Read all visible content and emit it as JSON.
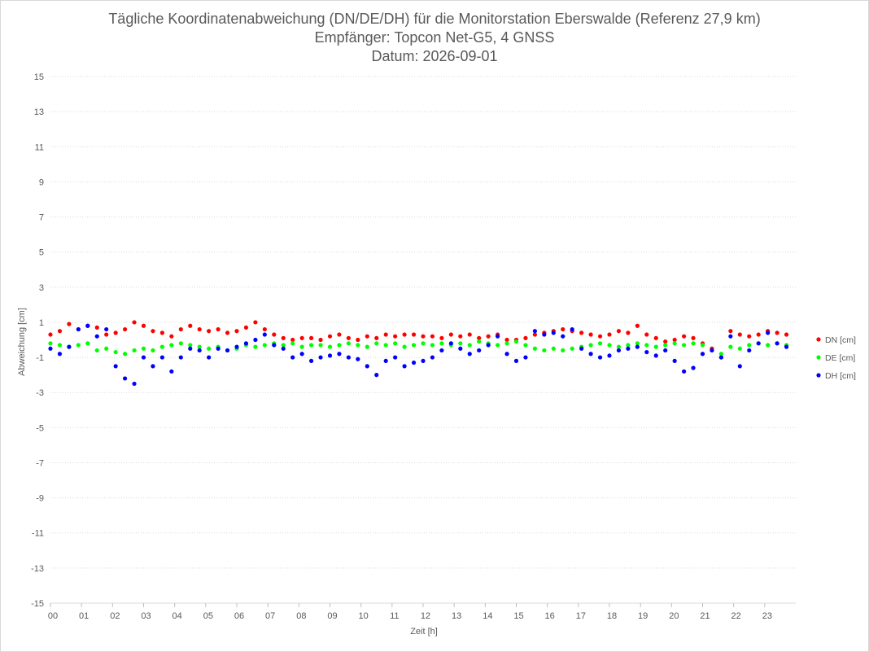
{
  "header": {
    "title": "Tägliche Koordinatenabweichung (DN/DE/DH) für die Monitorstation Eberswalde (Referenz 27,9 km)",
    "subtitle1": "Empfänger: Topcon Net-G5, 4 GNSS",
    "subtitle2": "Datum: 2026-09-01"
  },
  "chart_data": {
    "type": "scatter",
    "title": "Tägliche Koordinatenabweichung (DN/DE/DH) für die Monitorstation Eberswalde (Referenz 27,9 km)",
    "xlabel": "Zeit [h]",
    "ylabel": "Abweichung [cm]",
    "xlim": [
      0,
      24
    ],
    "ylim": [
      -15,
      15
    ],
    "yticks": [
      15,
      13,
      11,
      9,
      7,
      5,
      3,
      1,
      -1,
      -3,
      -5,
      -7,
      -9,
      -11,
      -13,
      -15
    ],
    "xtick_labels": [
      "00",
      "01",
      "02",
      "03",
      "04",
      "05",
      "06",
      "07",
      "08",
      "09",
      "10",
      "11",
      "12",
      "13",
      "14",
      "15",
      "16",
      "17",
      "18",
      "19",
      "20",
      "21",
      "22",
      "23"
    ],
    "grid": "horizontal-dotted",
    "legend_position": "right",
    "series": [
      {
        "name": "DN [cm]",
        "color": "#ff0000",
        "values": [
          [
            0.0,
            0.3
          ],
          [
            0.3,
            0.5
          ],
          [
            0.6,
            0.9
          ],
          [
            0.9,
            0.6
          ],
          [
            1.2,
            0.8
          ],
          [
            1.5,
            0.7
          ],
          [
            1.8,
            0.3
          ],
          [
            2.1,
            0.4
          ],
          [
            2.4,
            0.6
          ],
          [
            2.7,
            1.0
          ],
          [
            3.0,
            0.8
          ],
          [
            3.3,
            0.5
          ],
          [
            3.6,
            0.4
          ],
          [
            3.9,
            0.2
          ],
          [
            4.2,
            0.6
          ],
          [
            4.5,
            0.8
          ],
          [
            4.8,
            0.6
          ],
          [
            5.1,
            0.5
          ],
          [
            5.4,
            0.6
          ],
          [
            5.7,
            0.4
          ],
          [
            6.0,
            0.5
          ],
          [
            6.3,
            0.7
          ],
          [
            6.6,
            1.0
          ],
          [
            6.9,
            0.6
          ],
          [
            7.2,
            0.3
          ],
          [
            7.5,
            0.1
          ],
          [
            7.8,
            0.0
          ],
          [
            8.1,
            0.1
          ],
          [
            8.4,
            0.1
          ],
          [
            8.7,
            0.0
          ],
          [
            9.0,
            0.2
          ],
          [
            9.3,
            0.3
          ],
          [
            9.6,
            0.1
          ],
          [
            9.9,
            0.0
          ],
          [
            10.2,
            0.2
          ],
          [
            10.5,
            0.1
          ],
          [
            10.8,
            0.3
          ],
          [
            11.1,
            0.2
          ],
          [
            11.4,
            0.3
          ],
          [
            11.7,
            0.3
          ],
          [
            12.0,
            0.2
          ],
          [
            12.3,
            0.2
          ],
          [
            12.6,
            0.1
          ],
          [
            12.9,
            0.3
          ],
          [
            13.2,
            0.2
          ],
          [
            13.5,
            0.3
          ],
          [
            13.8,
            0.1
          ],
          [
            14.1,
            0.2
          ],
          [
            14.4,
            0.3
          ],
          [
            14.7,
            0.0
          ],
          [
            15.0,
            0.0
          ],
          [
            15.3,
            0.1
          ],
          [
            15.6,
            0.3
          ],
          [
            15.9,
            0.4
          ],
          [
            16.2,
            0.5
          ],
          [
            16.5,
            0.6
          ],
          [
            16.8,
            0.5
          ],
          [
            17.1,
            0.4
          ],
          [
            17.4,
            0.3
          ],
          [
            17.7,
            0.2
          ],
          [
            18.0,
            0.3
          ],
          [
            18.3,
            0.5
          ],
          [
            18.6,
            0.4
          ],
          [
            18.9,
            0.8
          ],
          [
            19.2,
            0.3
          ],
          [
            19.5,
            0.1
          ],
          [
            19.8,
            -0.1
          ],
          [
            20.1,
            0.0
          ],
          [
            20.4,
            0.2
          ],
          [
            20.7,
            0.1
          ],
          [
            21.0,
            -0.2
          ],
          [
            21.3,
            -0.5
          ],
          [
            21.6,
            -1.0
          ],
          [
            21.9,
            0.5
          ],
          [
            22.2,
            0.3
          ],
          [
            22.5,
            0.2
          ],
          [
            22.8,
            0.3
          ],
          [
            23.1,
            0.5
          ],
          [
            23.4,
            0.4
          ],
          [
            23.7,
            0.3
          ]
        ]
      },
      {
        "name": "DE [cm]",
        "color": "#00ff00",
        "values": [
          [
            0.0,
            -0.2
          ],
          [
            0.3,
            -0.3
          ],
          [
            0.6,
            -0.4
          ],
          [
            0.9,
            -0.3
          ],
          [
            1.2,
            -0.2
          ],
          [
            1.5,
            -0.6
          ],
          [
            1.8,
            -0.5
          ],
          [
            2.1,
            -0.7
          ],
          [
            2.4,
            -0.8
          ],
          [
            2.7,
            -0.6
          ],
          [
            3.0,
            -0.5
          ],
          [
            3.3,
            -0.6
          ],
          [
            3.6,
            -0.4
          ],
          [
            3.9,
            -0.3
          ],
          [
            4.2,
            -0.2
          ],
          [
            4.5,
            -0.3
          ],
          [
            4.8,
            -0.4
          ],
          [
            5.1,
            -0.5
          ],
          [
            5.4,
            -0.4
          ],
          [
            5.7,
            -0.6
          ],
          [
            6.0,
            -0.5
          ],
          [
            6.3,
            -0.3
          ],
          [
            6.6,
            -0.4
          ],
          [
            6.9,
            -0.3
          ],
          [
            7.2,
            -0.2
          ],
          [
            7.5,
            -0.3
          ],
          [
            7.8,
            -0.2
          ],
          [
            8.1,
            -0.4
          ],
          [
            8.4,
            -0.3
          ],
          [
            8.7,
            -0.3
          ],
          [
            9.0,
            -0.4
          ],
          [
            9.3,
            -0.3
          ],
          [
            9.6,
            -0.2
          ],
          [
            9.9,
            -0.3
          ],
          [
            10.2,
            -0.4
          ],
          [
            10.5,
            -0.2
          ],
          [
            10.8,
            -0.3
          ],
          [
            11.1,
            -0.2
          ],
          [
            11.4,
            -0.4
          ],
          [
            11.7,
            -0.3
          ],
          [
            12.0,
            -0.2
          ],
          [
            12.3,
            -0.3
          ],
          [
            12.6,
            -0.2
          ],
          [
            12.9,
            -0.3
          ],
          [
            13.2,
            -0.2
          ],
          [
            13.5,
            -0.3
          ],
          [
            13.8,
            -0.1
          ],
          [
            14.1,
            -0.2
          ],
          [
            14.4,
            -0.3
          ],
          [
            14.7,
            -0.2
          ],
          [
            15.0,
            -0.1
          ],
          [
            15.3,
            -0.3
          ],
          [
            15.6,
            -0.5
          ],
          [
            15.9,
            -0.6
          ],
          [
            16.2,
            -0.5
          ],
          [
            16.5,
            -0.6
          ],
          [
            16.8,
            -0.5
          ],
          [
            17.1,
            -0.4
          ],
          [
            17.4,
            -0.3
          ],
          [
            17.7,
            -0.2
          ],
          [
            18.0,
            -0.3
          ],
          [
            18.3,
            -0.4
          ],
          [
            18.6,
            -0.3
          ],
          [
            18.9,
            -0.2
          ],
          [
            19.2,
            -0.3
          ],
          [
            19.5,
            -0.4
          ],
          [
            19.8,
            -0.3
          ],
          [
            20.1,
            -0.2
          ],
          [
            20.4,
            -0.3
          ],
          [
            20.7,
            -0.2
          ],
          [
            21.0,
            -0.3
          ],
          [
            21.3,
            -0.6
          ],
          [
            21.6,
            -0.8
          ],
          [
            21.9,
            -0.4
          ],
          [
            22.2,
            -0.5
          ],
          [
            22.5,
            -0.3
          ],
          [
            22.8,
            -0.2
          ],
          [
            23.1,
            -0.3
          ],
          [
            23.4,
            -0.2
          ],
          [
            23.7,
            -0.3
          ]
        ]
      },
      {
        "name": "DH [cm]",
        "color": "#0000ff",
        "values": [
          [
            0.0,
            -0.5
          ],
          [
            0.3,
            -0.8
          ],
          [
            0.6,
            -0.4
          ],
          [
            0.9,
            0.6
          ],
          [
            1.2,
            0.8
          ],
          [
            1.5,
            0.2
          ],
          [
            1.8,
            0.6
          ],
          [
            2.1,
            -1.5
          ],
          [
            2.4,
            -2.2
          ],
          [
            2.7,
            -2.5
          ],
          [
            3.0,
            -1.0
          ],
          [
            3.3,
            -1.5
          ],
          [
            3.6,
            -1.0
          ],
          [
            3.9,
            -1.8
          ],
          [
            4.2,
            -1.0
          ],
          [
            4.5,
            -0.5
          ],
          [
            4.8,
            -0.6
          ],
          [
            5.1,
            -1.0
          ],
          [
            5.4,
            -0.5
          ],
          [
            5.7,
            -0.6
          ],
          [
            6.0,
            -0.4
          ],
          [
            6.3,
            -0.2
          ],
          [
            6.6,
            0.0
          ],
          [
            6.9,
            0.3
          ],
          [
            7.2,
            -0.3
          ],
          [
            7.5,
            -0.5
          ],
          [
            7.8,
            -1.0
          ],
          [
            8.1,
            -0.8
          ],
          [
            8.4,
            -1.2
          ],
          [
            8.7,
            -1.0
          ],
          [
            9.0,
            -0.9
          ],
          [
            9.3,
            -0.8
          ],
          [
            9.6,
            -1.0
          ],
          [
            9.9,
            -1.1
          ],
          [
            10.2,
            -1.5
          ],
          [
            10.5,
            -2.0
          ],
          [
            10.8,
            -1.2
          ],
          [
            11.1,
            -1.0
          ],
          [
            11.4,
            -1.5
          ],
          [
            11.7,
            -1.3
          ],
          [
            12.0,
            -1.2
          ],
          [
            12.3,
            -1.0
          ],
          [
            12.6,
            -0.6
          ],
          [
            12.9,
            -0.2
          ],
          [
            13.2,
            -0.5
          ],
          [
            13.5,
            -0.8
          ],
          [
            13.8,
            -0.6
          ],
          [
            14.1,
            -0.3
          ],
          [
            14.4,
            0.2
          ],
          [
            14.7,
            -0.8
          ],
          [
            15.0,
            -1.2
          ],
          [
            15.3,
            -1.0
          ],
          [
            15.6,
            0.5
          ],
          [
            15.9,
            0.3
          ],
          [
            16.2,
            0.4
          ],
          [
            16.5,
            0.2
          ],
          [
            16.8,
            0.6
          ],
          [
            17.1,
            -0.5
          ],
          [
            17.4,
            -0.8
          ],
          [
            17.7,
            -1.0
          ],
          [
            18.0,
            -0.9
          ],
          [
            18.3,
            -0.6
          ],
          [
            18.6,
            -0.5
          ],
          [
            18.9,
            -0.4
          ],
          [
            19.2,
            -0.7
          ],
          [
            19.5,
            -0.9
          ],
          [
            19.8,
            -0.6
          ],
          [
            20.1,
            -1.2
          ],
          [
            20.4,
            -1.8
          ],
          [
            20.7,
            -1.6
          ],
          [
            21.0,
            -0.8
          ],
          [
            21.3,
            -0.6
          ],
          [
            21.6,
            -1.0
          ],
          [
            21.9,
            0.2
          ],
          [
            22.2,
            -1.5
          ],
          [
            22.5,
            -0.6
          ],
          [
            22.8,
            -0.2
          ],
          [
            23.1,
            0.4
          ],
          [
            23.4,
            -0.2
          ],
          [
            23.7,
            -0.4
          ]
        ]
      }
    ]
  }
}
